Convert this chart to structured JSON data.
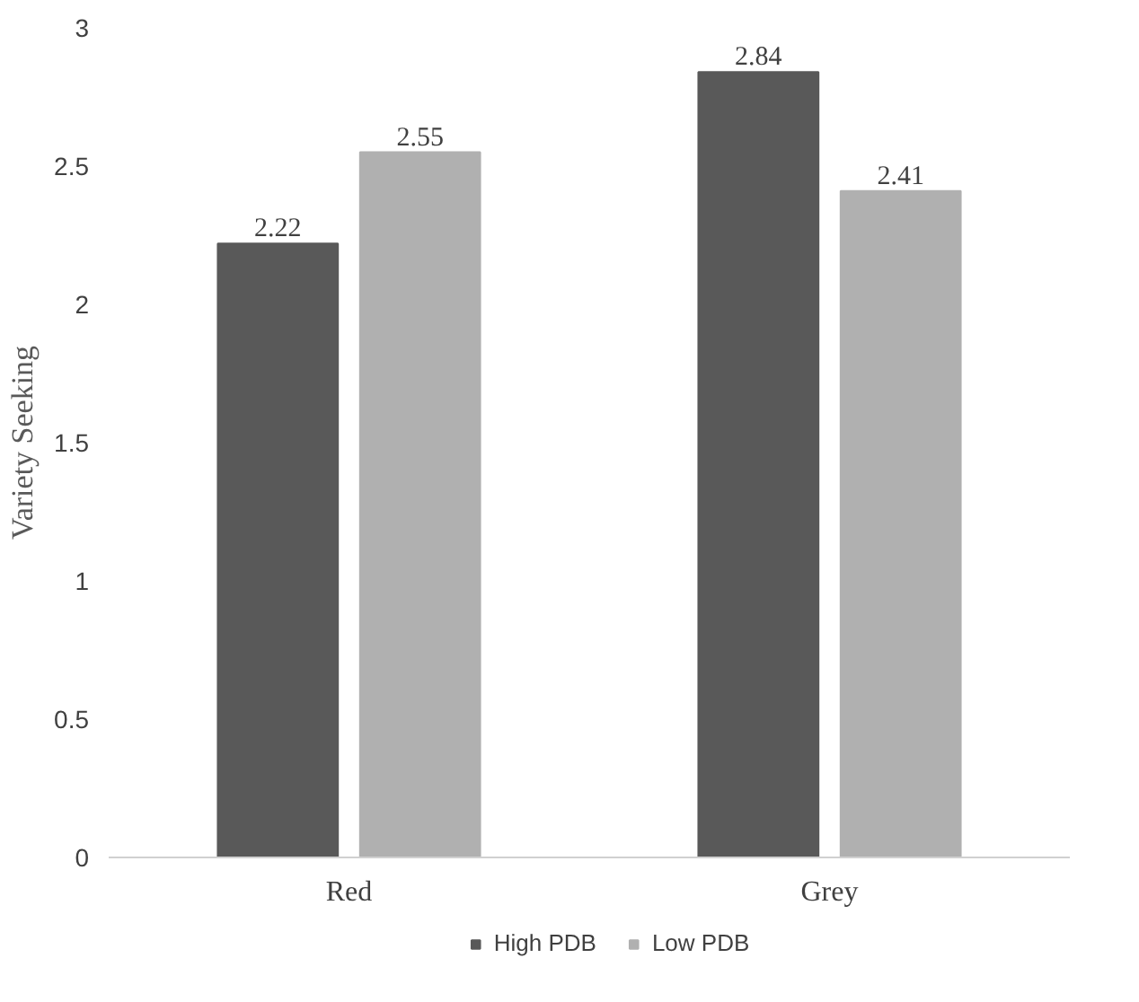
{
  "chart_data": {
    "type": "bar",
    "ylabel": "Variety Seeking",
    "categories": [
      "Red",
      "Grey"
    ],
    "series": [
      {
        "name": "High PDB",
        "color": "#595959",
        "values": [
          2.22,
          2.84
        ]
      },
      {
        "name": "Low PDB",
        "color": "#b0b0b0",
        "values": [
          2.55,
          2.41
        ]
      }
    ],
    "ylim": [
      0,
      3
    ],
    "yticks": [
      0,
      0.5,
      1,
      1.5,
      2,
      2.5,
      3
    ],
    "grid": false,
    "legend": "bottom",
    "data_labels": true
  }
}
